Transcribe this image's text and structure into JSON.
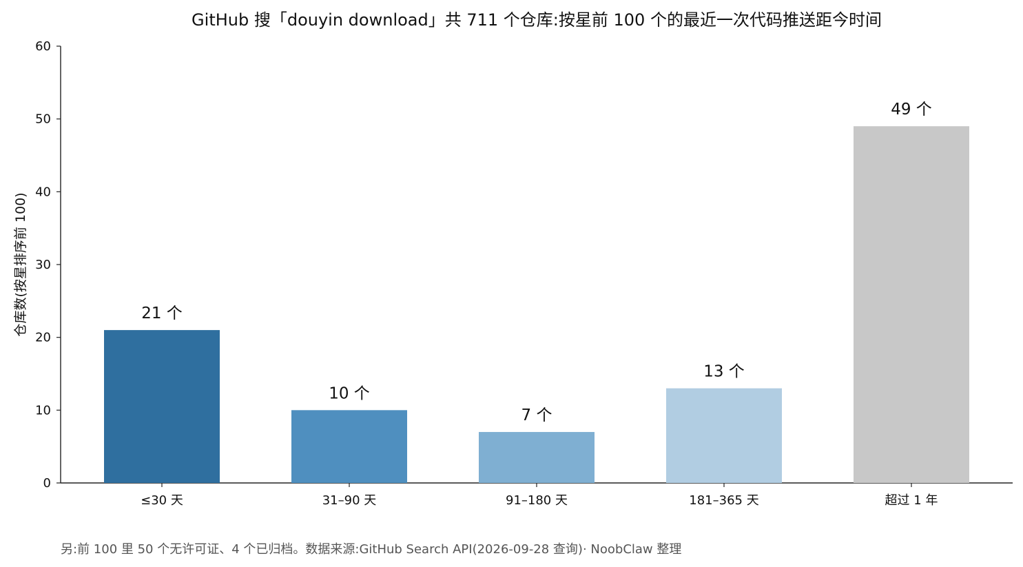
{
  "chart_data": {
    "type": "bar",
    "title": "GitHub 搜「douyin download」共 711 个仓库:按星前 100 个的最近一次代码推送距今时间",
    "xlabel": "",
    "ylabel": "仓库数(按星排序前 100)",
    "ylim": [
      0,
      60
    ],
    "yticks": [
      0,
      10,
      20,
      30,
      40,
      50,
      60
    ],
    "categories": [
      "≤30 天",
      "31–90 天",
      "91–180 天",
      "181–365 天",
      "超过 1 年"
    ],
    "values": [
      21,
      10,
      7,
      13,
      49
    ],
    "value_labels": [
      "21 个",
      "10 个",
      "7 个",
      "13 个",
      "49 个"
    ],
    "colors": [
      "#2f6f9f",
      "#4f8fbf",
      "#7fafd2",
      "#b1cde2",
      "#c8c8c8"
    ],
    "grid": false,
    "legend": "none",
    "footnote": "另:前 100 里 50 个无许可证、4 个已归档。数据来源:GitHub Search API(2026-09-28 查询)· NoobClaw 整理"
  }
}
